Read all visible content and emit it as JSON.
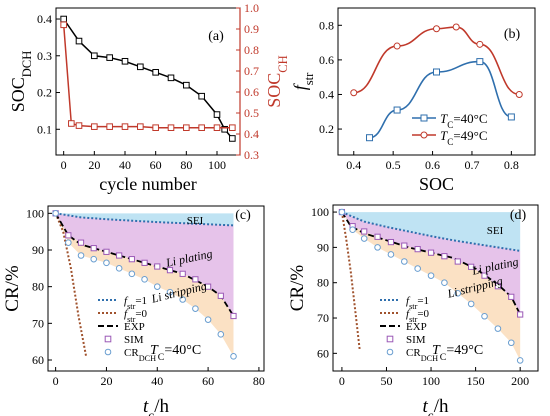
{
  "chart_data": [
    {
      "panel": "(a)",
      "type": "line",
      "xlabel": "cycle number",
      "ylabel_left": "SOC_DCH",
      "ylabel_right": "SOC_CH",
      "xlim": [
        -5,
        115
      ],
      "ylim_left": [
        0.03,
        0.43
      ],
      "ylim_right": [
        0.3,
        1.0
      ],
      "xticks": [
        0,
        20,
        40,
        60,
        80,
        100
      ],
      "yticks_left": [
        0.1,
        0.2,
        0.3,
        0.4
      ],
      "yticks_right": [
        0.3,
        0.4,
        0.5,
        0.6,
        0.7,
        0.8,
        0.9,
        1.0
      ],
      "series": [
        {
          "axis": "left",
          "color": "#000000",
          "marker": "square-open",
          "x": [
            0,
            10,
            20,
            30,
            40,
            50,
            60,
            70,
            80,
            90,
            100,
            105,
            110
          ],
          "y": [
            0.4,
            0.34,
            0.3,
            0.295,
            0.285,
            0.27,
            0.255,
            0.24,
            0.22,
            0.19,
            0.14,
            0.1,
            0.075
          ]
        },
        {
          "axis": "right",
          "color": "#c0392b",
          "marker": "square-open",
          "x": [
            0,
            5,
            10,
            20,
            30,
            40,
            50,
            60,
            70,
            80,
            90,
            100,
            110
          ],
          "y": [
            0.92,
            0.45,
            0.44,
            0.435,
            0.435,
            0.435,
            0.435,
            0.43,
            0.43,
            0.43,
            0.43,
            0.43,
            0.43
          ]
        }
      ]
    },
    {
      "panel": "(b)",
      "type": "line",
      "xlabel": "SOC",
      "ylabel": "f_str",
      "xlim": [
        0.36,
        0.86
      ],
      "ylim": [
        0.05,
        0.9
      ],
      "xticks": [
        0.4,
        0.5,
        0.6,
        0.7,
        0.8
      ],
      "yticks": [
        0.2,
        0.4,
        0.6,
        0.8
      ],
      "legend_position": "bottom-center",
      "series": [
        {
          "name": "T_C=40°C",
          "color": "#2f6fad",
          "marker": "square-open",
          "x": [
            0.44,
            0.51,
            0.61,
            0.72,
            0.8
          ],
          "y": [
            0.15,
            0.31,
            0.53,
            0.59,
            0.27
          ]
        },
        {
          "name": "T_C=49°C",
          "color": "#c0392b",
          "marker": "circle-open",
          "x": [
            0.4,
            0.51,
            0.61,
            0.66,
            0.72,
            0.82
          ],
          "y": [
            0.41,
            0.68,
            0.78,
            0.79,
            0.69,
            0.4
          ]
        }
      ]
    },
    {
      "panel": "(c)",
      "type": "line",
      "xlabel": "t_c/h",
      "ylabel": "CR/%",
      "xlim": [
        -3,
        82
      ],
      "ylim": [
        57,
        102
      ],
      "xticks": [
        0,
        20,
        40,
        60,
        80
      ],
      "yticks": [
        60,
        70,
        80,
        90,
        100
      ],
      "annotation": "T_C=40°C",
      "region_labels": [
        "SEI",
        "Li plating",
        "Li stripping"
      ],
      "legend": [
        "f_str=1",
        "f_str=0",
        "EXP",
        "SIM",
        "CR_DCH"
      ],
      "series": [
        {
          "name": "f_str=1",
          "style": "dotted",
          "color": "#2f6fad",
          "x": [
            0,
            10,
            20,
            30,
            40,
            50,
            60,
            70
          ],
          "y": [
            100,
            98.9,
            98.4,
            98.0,
            97.6,
            97.3,
            97.0,
            96.7
          ]
        },
        {
          "name": "f_str=0",
          "style": "dotted",
          "color": "#a0522d",
          "x": [
            0,
            3,
            6,
            9,
            12
          ],
          "y": [
            100,
            95,
            85,
            72,
            61
          ]
        },
        {
          "name": "EXP",
          "style": "dashed",
          "color": "#000000",
          "x": [
            0,
            5,
            10,
            20,
            30,
            40,
            50,
            60,
            65,
            70
          ],
          "y": [
            100,
            94,
            91.5,
            89.5,
            87.5,
            85.5,
            83.5,
            80,
            77.5,
            72
          ]
        },
        {
          "name": "SIM",
          "style": "square-open",
          "color": "#9b59b6",
          "x": [
            0,
            5,
            10,
            15,
            20,
            25,
            30,
            35,
            40,
            45,
            50,
            55,
            60,
            65,
            70
          ],
          "y": [
            100,
            94,
            92,
            90.5,
            89.5,
            88.5,
            87.5,
            86.5,
            85.5,
            84.5,
            83.5,
            82,
            80,
            77.5,
            72
          ]
        },
        {
          "name": "CR_DCH",
          "style": "circle-open",
          "color": "#6a9ed0",
          "x": [
            0,
            5,
            10,
            15,
            20,
            25,
            30,
            35,
            40,
            45,
            50,
            55,
            60,
            65,
            70
          ],
          "y": [
            100,
            92,
            88.5,
            87.5,
            86.5,
            85,
            83.5,
            82,
            80,
            78.5,
            76.5,
            74,
            71,
            67,
            61
          ]
        }
      ]
    },
    {
      "panel": "(d)",
      "type": "line",
      "xlabel": "t_c/h",
      "ylabel": "CR/%",
      "xlim": [
        -10,
        220
      ],
      "ylim": [
        55,
        102
      ],
      "xticks": [
        0,
        50,
        100,
        150,
        200
      ],
      "yticks": [
        60,
        70,
        80,
        90,
        100
      ],
      "annotation": "T_C=49°C",
      "region_labels": [
        "SEI",
        "Li plating",
        "Li stripping"
      ],
      "legend": [
        "f_str=1",
        "f_str=0",
        "EXP",
        "SIM",
        "CR_DCH"
      ],
      "series": [
        {
          "name": "f_str=1",
          "style": "dotted",
          "color": "#2f6fad",
          "x": [
            0,
            25,
            50,
            75,
            100,
            125,
            150,
            175,
            200
          ],
          "y": [
            100,
            97.3,
            95.8,
            94.5,
            93.2,
            92.0,
            91.0,
            90.0,
            89.0
          ]
        },
        {
          "name": "f_str=0",
          "style": "dotted",
          "color": "#a0522d",
          "x": [
            0,
            5,
            10,
            15,
            20
          ],
          "y": [
            100,
            92,
            83,
            72,
            61
          ]
        },
        {
          "name": "EXP",
          "style": "dashed",
          "color": "#000000",
          "x": [
            0,
            10,
            25,
            50,
            75,
            100,
            125,
            150,
            175,
            190,
            200
          ],
          "y": [
            100,
            96,
            94,
            92,
            90,
            88.5,
            87,
            84,
            79.5,
            76,
            71
          ]
        },
        {
          "name": "SIM",
          "style": "square-open",
          "color": "#9b59b6",
          "x": [
            0,
            12,
            25,
            40,
            55,
            70,
            85,
            100,
            115,
            130,
            145,
            160,
            175,
            190,
            200
          ],
          "y": [
            100,
            96,
            94.5,
            93,
            91.5,
            90.5,
            89.5,
            88.5,
            87.5,
            86,
            84.5,
            82,
            79,
            76,
            71
          ]
        },
        {
          "name": "CR_DCH",
          "style": "circle-open",
          "color": "#6a9ed0",
          "x": [
            0,
            12,
            25,
            40,
            55,
            70,
            85,
            100,
            115,
            130,
            145,
            160,
            175,
            190,
            200
          ],
          "y": [
            100,
            95,
            92.5,
            90,
            88,
            86,
            84,
            82,
            80,
            77,
            74,
            70.5,
            67,
            63,
            58
          ]
        }
      ]
    }
  ],
  "panel_tags": [
    "(a)",
    "(b)",
    "(c)",
    "(d)"
  ],
  "labels": {
    "a_xlabel": "cycle number",
    "b_xlabel": "SOC",
    "region_sei": "SEI",
    "region_plating": "Li plating",
    "region_stripping": "Li stripping",
    "annot_c": "=40°C",
    "annot_d": "=49°C",
    "annot_prefix": "T",
    "annot_sub": "C",
    "legend_exp": "EXP",
    "legend_sim": "SIM"
  },
  "colors": {
    "sei_fill": "#bfe3f3",
    "plating_fill": "#e6c3ea",
    "stripping_fill": "#fbe1c4",
    "red": "#c0392b",
    "blue": "#2f6fad"
  }
}
